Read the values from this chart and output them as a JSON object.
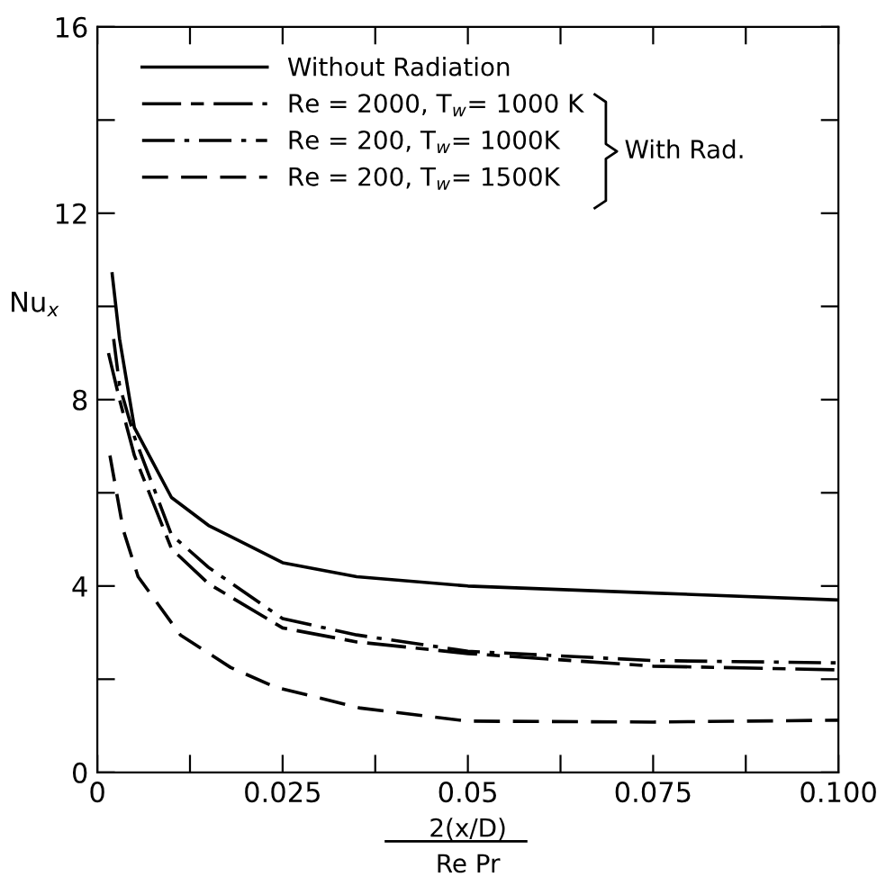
{
  "chart_data": {
    "type": "line",
    "xlabel": "2(x/D)\nRe Pr",
    "ylabel": "Nu$_{x}$",
    "xlim": [
      0,
      0.1
    ],
    "ylim": [
      0,
      16
    ],
    "xticks": [
      0,
      {
        "value": 0.0125,
        "label": null
      },
      0.025,
      {
        "value": 0.0375,
        "label": null
      },
      0.05,
      {
        "value": 0.0625,
        "label": null
      },
      0.075,
      {
        "value": 0.0875,
        "label": null
      },
      {
        "value": 0.1,
        "label": "0.100"
      }
    ],
    "yticks": [
      0,
      {
        "value": 2,
        "label": null
      },
      4,
      {
        "value": 6,
        "label": null
      },
      8,
      {
        "value": 10,
        "label": null
      },
      12,
      {
        "value": 14,
        "label": null
      },
      16
    ],
    "grid": false,
    "legend": "top left",
    "marker": "none",
    "series": [
      {
        "name": "Without Radiation",
        "color": "#000000",
        "line_style": "solid",
        "x": [
          0.002,
          0.003,
          0.005,
          0.01,
          0.015,
          0.025,
          0.035,
          0.05,
          0.075,
          0.1
        ],
        "values": [
          10.7,
          9.3,
          7.4,
          5.9,
          5.3,
          4.5,
          4.2,
          4.0,
          3.85,
          3.7
        ]
      },
      {
        "name": "Re = 2000, T$_{w}$= 1000 K",
        "color": "#000000",
        "line_style": "longdash",
        "x": [
          0.0015,
          0.003,
          0.005,
          0.01,
          0.015,
          0.025,
          0.035,
          0.05,
          0.075,
          0.1
        ],
        "values": [
          9.0,
          8.0,
          6.8,
          4.8,
          4.05,
          3.1,
          2.8,
          2.55,
          2.28,
          2.2
        ]
      },
      {
        "name": "Re = 200, T$_{w}$= 1000K",
        "color": "#000000",
        "line_style": "dashdot",
        "x": [
          0.0022,
          0.003,
          0.005,
          0.01,
          0.015,
          0.025,
          0.035,
          0.05,
          0.075,
          0.1
        ],
        "values": [
          9.3,
          8.3,
          7.2,
          5.1,
          4.4,
          3.3,
          2.95,
          2.6,
          2.4,
          2.35
        ]
      },
      {
        "name": "Re = 200, T$_{w}$= 1500K",
        "color": "#000000",
        "line_style": "dashed",
        "x": [
          0.0017,
          0.0035,
          0.0055,
          0.0112,
          0.018,
          0.024,
          0.0355,
          0.05,
          0.075,
          0.1
        ],
        "values": [
          6.8,
          5.2,
          4.2,
          2.95,
          2.25,
          1.83,
          1.38,
          1.1,
          1.08,
          1.12
        ]
      }
    ],
    "annotations": [
      "With Rad."
    ]
  }
}
